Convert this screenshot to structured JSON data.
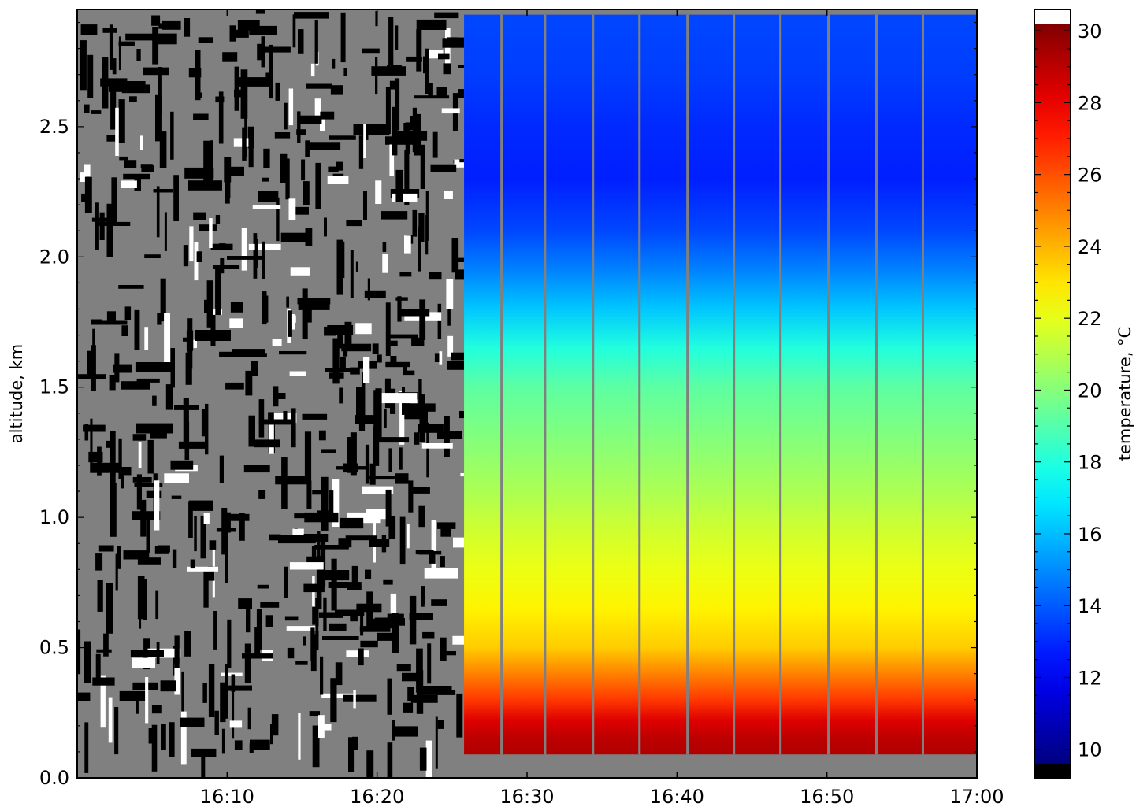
{
  "chart_data": {
    "type": "heatmap",
    "title": "",
    "xlabel": "",
    "ylabel": "altitude, km",
    "colorbar_label": "temperature, °C",
    "xlim": [
      "16:00",
      "17:00"
    ],
    "ylim": [
      0.0,
      2.95
    ],
    "x_ticks": [
      "16:10",
      "16:20",
      "16:30",
      "16:40",
      "16:50",
      "17:00"
    ],
    "y_ticks": [
      "0.0",
      "0.5",
      "1.0",
      "1.5",
      "2.0",
      "2.5"
    ],
    "colorbar_range": [
      9.6,
      30.2
    ],
    "colorbar_ticks": [
      "10",
      "12",
      "14",
      "16",
      "18",
      "20",
      "22",
      "24",
      "26",
      "28",
      "30"
    ],
    "colormap": "jet",
    "over_color": "#ffffff",
    "under_color": "#000000",
    "nodata_color": "#808080",
    "data_start": "16:25.8",
    "gap_times": [
      "16:28.3",
      "16:31.2",
      "16:34.4",
      "16:37.5",
      "16:40.7",
      "16:43.8",
      "16:46.9",
      "16:50.1",
      "16:53.3",
      "16:56.4"
    ],
    "data_altitude_range": [
      0.09,
      2.93
    ],
    "profile": {
      "altitude_km": [
        0.09,
        0.15,
        0.22,
        0.3,
        0.4,
        0.5,
        0.65,
        0.8,
        0.95,
        1.1,
        1.3,
        1.5,
        1.65,
        1.8,
        1.95,
        2.1,
        2.3,
        2.5,
        2.7,
        2.93
      ],
      "temperature_c": [
        29.2,
        29.0,
        28.3,
        26.5,
        25.0,
        23.5,
        22.7,
        22.1,
        21.5,
        20.8,
        20.0,
        19.2,
        18.0,
        16.2,
        14.8,
        13.6,
        12.8,
        13.0,
        13.4,
        13.6
      ]
    }
  }
}
